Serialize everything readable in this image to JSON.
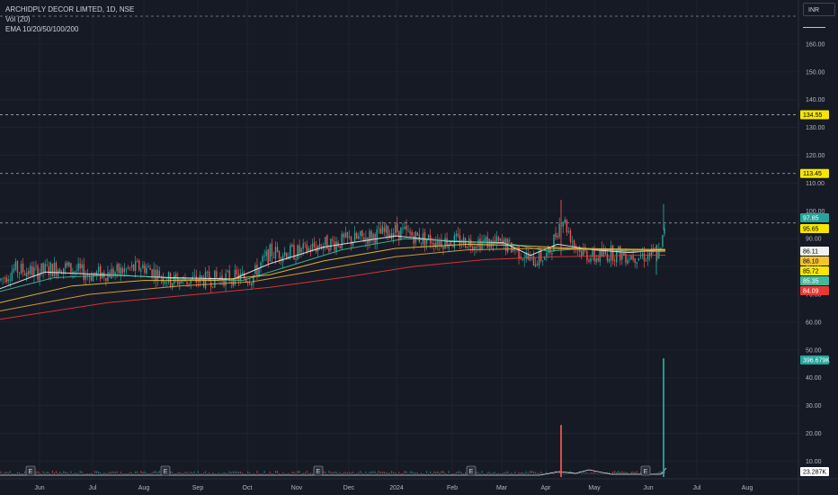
{
  "legend": {
    "title": "ARCHIDPLY DECOR LIMTED, 1D, NSE",
    "volume": "Vol (20)",
    "ema": "EMA 10/20/50/100/200"
  },
  "currency_button": "INR",
  "colors": {
    "background": "#161a25",
    "grid": "#1f2330",
    "up": "#26a69a",
    "down": "#ef5350",
    "ema10": "#f1f1f1",
    "ema20": "#43b89a",
    "ema50": "#f4c430",
    "ema100": "#e8a33a",
    "ema200": "#e53935",
    "level_line": "#d1d4dc",
    "level_tag": "#f7e600"
  },
  "chart_data": {
    "type": "candlestick",
    "title": "ARCHIDPLY DECOR LIMTED, 1D, NSE",
    "price_axis": {
      "ticks": [
        "160.00",
        "150.00",
        "140.00",
        "130.00",
        "120.00",
        "110.00",
        "100.00",
        "90.00",
        "80.00",
        "70.00",
        "60.00",
        "50.00",
        "40.00",
        "30.00",
        "20.00",
        "10.00"
      ],
      "range": [
        5,
        170
      ]
    },
    "time_axis": {
      "ticks": [
        "Jun",
        "Jul",
        "Aug",
        "Sep",
        "Oct",
        "Nov",
        "Dec",
        "2024",
        "Feb",
        "Mar",
        "Apr",
        "May",
        "Jun",
        "Jul",
        "Aug"
      ]
    },
    "earnings_markers": [
      "E",
      "E",
      "E",
      "E",
      "E"
    ],
    "horizontal_levels": [
      {
        "label": "134.55",
        "value": 134.55
      },
      {
        "label": "113.45",
        "value": 113.45
      },
      {
        "label": "95.65",
        "value": 95.65
      }
    ],
    "price_tags": [
      {
        "label": "97.85",
        "value": 97.85,
        "color": "#26a69a",
        "text_color": "#ffffff"
      },
      {
        "label": "95.65",
        "value": 95.65,
        "color": "#f7e600",
        "text_color": "#000000"
      },
      {
        "label": "86.11",
        "value": 86.11,
        "color": "#f1f1f1",
        "text_color": "#000000"
      },
      {
        "label": "86.10",
        "value": 86.1,
        "color": "#f4c430",
        "text_color": "#000000"
      },
      {
        "label": "85.72",
        "value": 85.72,
        "color": "#f7e600",
        "text_color": "#000000"
      },
      {
        "label": "85.35",
        "value": 85.35,
        "color": "#43b89a",
        "text_color": "#ffffff"
      },
      {
        "label": "84.09",
        "value": 84.09,
        "color": "#e53935",
        "text_color": "#ffffff"
      }
    ],
    "volume_tags": [
      {
        "label": "396.679K",
        "color": "#26a69a",
        "text_color": "#ffffff"
      },
      {
        "label": "23.287K",
        "color": "#ffffff",
        "text_color": "#000000"
      }
    ],
    "price_path": [
      {
        "x": 0,
        "y": 75
      },
      {
        "x": 15,
        "y": 79
      },
      {
        "x": 40,
        "y": 78
      },
      {
        "x": 70,
        "y": 80
      },
      {
        "x": 100,
        "y": 77
      },
      {
        "x": 130,
        "y": 78
      },
      {
        "x": 160,
        "y": 80
      },
      {
        "x": 190,
        "y": 75
      },
      {
        "x": 220,
        "y": 75
      },
      {
        "x": 250,
        "y": 76
      },
      {
        "x": 280,
        "y": 76
      },
      {
        "x": 300,
        "y": 85
      },
      {
        "x": 330,
        "y": 85
      },
      {
        "x": 360,
        "y": 88
      },
      {
        "x": 400,
        "y": 90
      },
      {
        "x": 440,
        "y": 93
      },
      {
        "x": 470,
        "y": 90
      },
      {
        "x": 500,
        "y": 89
      },
      {
        "x": 530,
        "y": 89
      },
      {
        "x": 560,
        "y": 88
      },
      {
        "x": 575,
        "y": 86
      },
      {
        "x": 590,
        "y": 82
      },
      {
        "x": 610,
        "y": 84
      },
      {
        "x": 625,
        "y": 98
      },
      {
        "x": 640,
        "y": 87
      },
      {
        "x": 660,
        "y": 83
      },
      {
        "x": 680,
        "y": 85
      },
      {
        "x": 700,
        "y": 84
      },
      {
        "x": 720,
        "y": 84
      },
      {
        "x": 735,
        "y": 85
      },
      {
        "x": 740,
        "y": 97
      }
    ],
    "ema_series": [
      {
        "name": "EMA 10",
        "color": "#f1f1f1",
        "points": [
          {
            "x": 0,
            "y": 72
          },
          {
            "x": 50,
            "y": 78
          },
          {
            "x": 120,
            "y": 77
          },
          {
            "x": 190,
            "y": 76
          },
          {
            "x": 260,
            "y": 75.5
          },
          {
            "x": 300,
            "y": 81
          },
          {
            "x": 360,
            "y": 87
          },
          {
            "x": 440,
            "y": 91
          },
          {
            "x": 500,
            "y": 89
          },
          {
            "x": 560,
            "y": 88.5
          },
          {
            "x": 590,
            "y": 84
          },
          {
            "x": 620,
            "y": 88
          },
          {
            "x": 660,
            "y": 86
          },
          {
            "x": 700,
            "y": 85
          },
          {
            "x": 740,
            "y": 86.1
          }
        ]
      },
      {
        "name": "EMA 20",
        "color": "#43b89a",
        "points": [
          {
            "x": 0,
            "y": 71
          },
          {
            "x": 60,
            "y": 76
          },
          {
            "x": 130,
            "y": 77
          },
          {
            "x": 200,
            "y": 75.5
          },
          {
            "x": 270,
            "y": 75
          },
          {
            "x": 320,
            "y": 80
          },
          {
            "x": 380,
            "y": 86
          },
          {
            "x": 450,
            "y": 90
          },
          {
            "x": 520,
            "y": 89
          },
          {
            "x": 570,
            "y": 88
          },
          {
            "x": 610,
            "y": 85.5
          },
          {
            "x": 650,
            "y": 86.5
          },
          {
            "x": 700,
            "y": 85.5
          },
          {
            "x": 740,
            "y": 85.35
          }
        ]
      },
      {
        "name": "EMA 50",
        "color": "#f4c430",
        "points": [
          {
            "x": 0,
            "y": 67
          },
          {
            "x": 80,
            "y": 73
          },
          {
            "x": 160,
            "y": 75
          },
          {
            "x": 240,
            "y": 75
          },
          {
            "x": 300,
            "y": 77
          },
          {
            "x": 360,
            "y": 82
          },
          {
            "x": 440,
            "y": 86.5
          },
          {
            "x": 520,
            "y": 88
          },
          {
            "x": 580,
            "y": 87.5
          },
          {
            "x": 640,
            "y": 86.5
          },
          {
            "x": 700,
            "y": 86.2
          },
          {
            "x": 740,
            "y": 86.1
          }
        ]
      },
      {
        "name": "EMA 100",
        "color": "#e8a33a",
        "points": [
          {
            "x": 0,
            "y": 64
          },
          {
            "x": 100,
            "y": 70
          },
          {
            "x": 200,
            "y": 73
          },
          {
            "x": 280,
            "y": 74.5
          },
          {
            "x": 360,
            "y": 79
          },
          {
            "x": 440,
            "y": 83.5
          },
          {
            "x": 520,
            "y": 86
          },
          {
            "x": 600,
            "y": 86.5
          },
          {
            "x": 680,
            "y": 86
          },
          {
            "x": 740,
            "y": 85.72
          }
        ]
      },
      {
        "name": "EMA 200",
        "color": "#e53935",
        "points": [
          {
            "x": 0,
            "y": 61
          },
          {
            "x": 120,
            "y": 67
          },
          {
            "x": 220,
            "y": 70
          },
          {
            "x": 300,
            "y": 72.5
          },
          {
            "x": 380,
            "y": 76
          },
          {
            "x": 460,
            "y": 80
          },
          {
            "x": 540,
            "y": 82.5
          },
          {
            "x": 620,
            "y": 83.5
          },
          {
            "x": 700,
            "y": 84
          },
          {
            "x": 740,
            "y": 84.09
          }
        ]
      }
    ],
    "volume_spikes": [
      {
        "x": 624,
        "value": 23,
        "color": "#ef5350"
      },
      {
        "x": 738,
        "value": 47,
        "color": "#26a69a"
      }
    ]
  }
}
